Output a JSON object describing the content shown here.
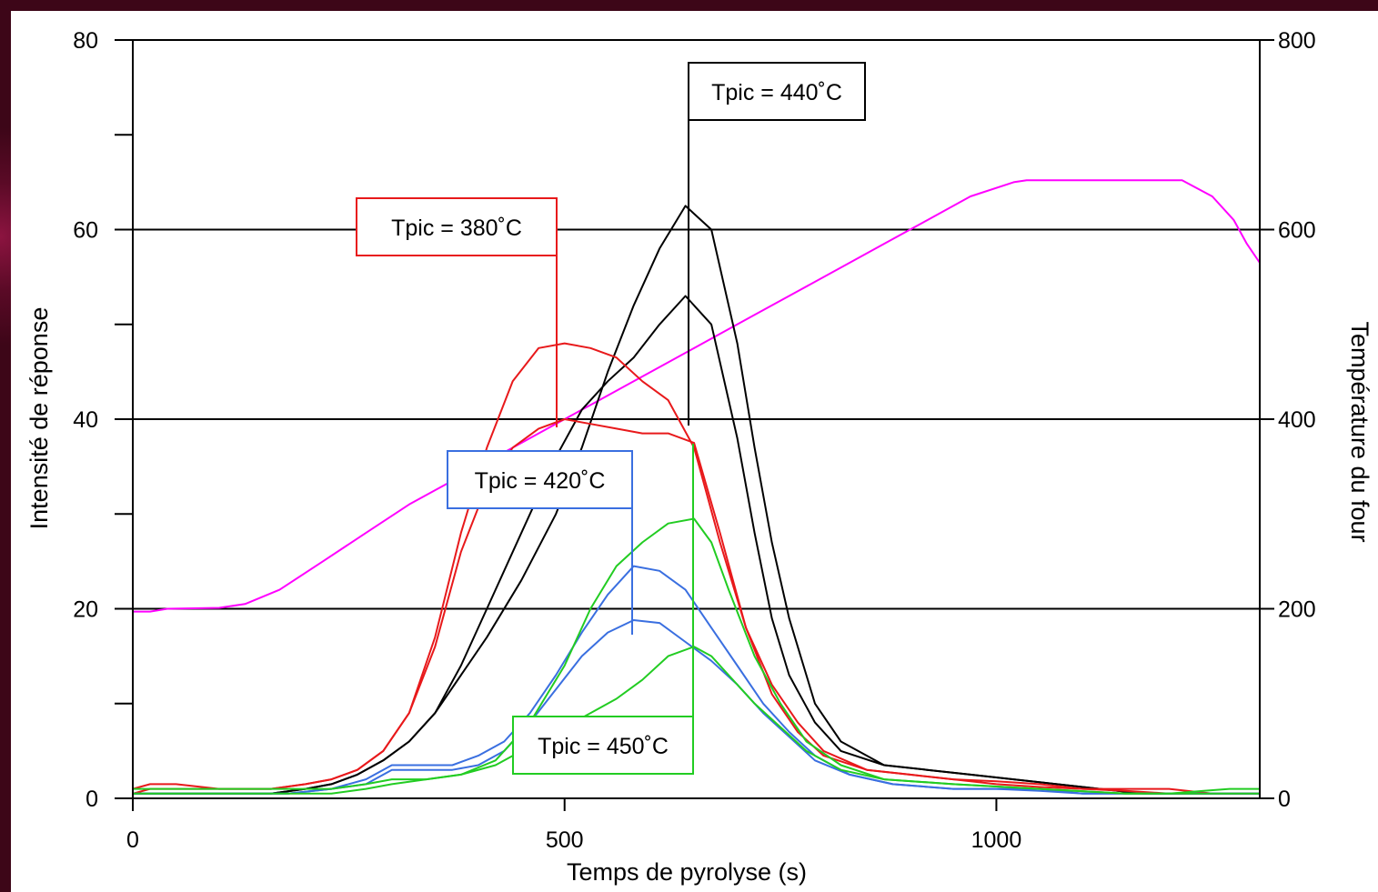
{
  "chart_data": {
    "type": "line",
    "xlabel": "Temps de pyrolyse (s)",
    "ylabel": "Intensité de réponse",
    "y2label": "Température du four",
    "xlim": [
      0,
      1305
    ],
    "ylim": [
      0,
      80
    ],
    "y2lim": [
      0,
      800
    ],
    "x_ticks": [
      "0",
      "500",
      "1000"
    ],
    "y_ticks": [
      "0",
      "20",
      "40",
      "60",
      "80"
    ],
    "y2_ticks": [
      "0",
      "200",
      "400",
      "600",
      "800"
    ],
    "grid": "horizontal at 20, 40, 60",
    "annotations": [
      {
        "text": "Tpic = 440˚C",
        "color": "#000000",
        "x": 643,
        "peak_y": 62.5
      },
      {
        "text": "Tpic = 380˚C",
        "color": "#e8191b",
        "x": 492,
        "peak_y": 48
      },
      {
        "text": "Tpic = 420˚C",
        "color": "#3a6fe0",
        "x": 578,
        "peak_y": 24.5
      },
      {
        "text": "Tpic = 450˚C",
        "color": "#22cc22",
        "x": 647,
        "peak_y": 29.5
      }
    ],
    "series": [
      {
        "color": "#ff00ff",
        "axis": "y2",
        "x": [
          0,
          20,
          40,
          100,
          130,
          170,
          220,
          270,
          320,
          370,
          420,
          470,
          520,
          570,
          620,
          670,
          720,
          770,
          820,
          870,
          920,
          970,
          1020,
          1035,
          1100,
          1150,
          1215,
          1250,
          1275,
          1290,
          1305
        ],
        "y": [
          197,
          197,
          200,
          201,
          205,
          220,
          250,
          280,
          310,
          335,
          360,
          385,
          410,
          435,
          460,
          485,
          510,
          535,
          560,
          585,
          610,
          635,
          650,
          652,
          652,
          652,
          652,
          635,
          610,
          585,
          565
        ]
      },
      {
        "color": "#000000",
        "axis": "y1",
        "x": [
          0,
          100,
          160,
          200,
          230,
          260,
          290,
          320,
          350,
          380,
          410,
          450,
          490,
          520,
          550,
          580,
          610,
          640,
          670,
          700,
          720,
          740,
          760,
          790,
          820,
          870,
          920,
          970,
          1020,
          1070,
          1120,
          1170,
          1220,
          1270,
          1305
        ],
        "y": [
          0.5,
          0.5,
          0.5,
          1,
          1.5,
          2.5,
          4,
          6,
          9,
          13,
          17,
          23,
          30,
          37,
          45,
          52,
          58,
          62.5,
          60,
          48,
          37,
          27,
          19,
          10,
          6,
          3.5,
          3,
          2.5,
          2,
          1.5,
          1,
          0.5,
          0.5,
          0.5,
          0.5
        ]
      },
      {
        "color": "#000000",
        "axis": "y1",
        "x": [
          0,
          100,
          160,
          200,
          230,
          260,
          290,
          320,
          350,
          380,
          410,
          450,
          490,
          520,
          550,
          580,
          610,
          640,
          670,
          700,
          720,
          740,
          760,
          790,
          820,
          870,
          920,
          970,
          1020,
          1070,
          1120,
          1170,
          1220,
          1270,
          1305
        ],
        "y": [
          0.5,
          0.5,
          0.5,
          1,
          1.5,
          2.5,
          4,
          6,
          9,
          14,
          20,
          28,
          36,
          41,
          44,
          46.5,
          50,
          53,
          50,
          38,
          28,
          19,
          13,
          8,
          5,
          3.5,
          3,
          2.5,
          2,
          1.5,
          1,
          0.5,
          0.5,
          0.5,
          0.5
        ]
      },
      {
        "color": "#e8191b",
        "axis": "y1",
        "x": [
          0,
          20,
          50,
          100,
          160,
          200,
          230,
          260,
          290,
          320,
          350,
          380,
          410,
          440,
          470,
          500,
          530,
          560,
          590,
          620,
          650,
          680,
          710,
          740,
          770,
          800,
          850,
          900,
          950,
          1000,
          1050,
          1100,
          1150,
          1200,
          1250,
          1305
        ],
        "y": [
          1,
          1.5,
          1.5,
          1,
          1,
          1.5,
          2,
          3,
          5,
          9,
          17,
          28,
          37,
          44,
          47.5,
          48,
          47.5,
          46.5,
          44,
          42,
          37,
          27,
          18,
          12,
          8,
          5,
          3,
          2.5,
          2,
          1.8,
          1.5,
          1,
          1,
          1,
          0.5,
          0.5
        ]
      },
      {
        "color": "#e8191b",
        "axis": "y1",
        "x": [
          0,
          20,
          50,
          100,
          160,
          200,
          230,
          260,
          290,
          320,
          350,
          380,
          410,
          440,
          470,
          500,
          530,
          560,
          590,
          620,
          650,
          680,
          710,
          740,
          770,
          800,
          850,
          900,
          950,
          1000,
          1050,
          1100,
          1150,
          1200,
          1250,
          1305
        ],
        "y": [
          0.5,
          1,
          1,
          1,
          1,
          1.5,
          2,
          3,
          5,
          9,
          16,
          26,
          33,
          37,
          39,
          40,
          39.5,
          39,
          38.5,
          38.5,
          37.5,
          28,
          18,
          11,
          7,
          4.5,
          3,
          2.5,
          2,
          1.5,
          1.2,
          1,
          0.8,
          0.5,
          0.5,
          0.5
        ]
      },
      {
        "color": "#3a6fe0",
        "axis": "y1",
        "x": [
          0,
          100,
          180,
          230,
          270,
          300,
          340,
          370,
          400,
          430,
          460,
          490,
          520,
          550,
          580,
          610,
          640,
          670,
          700,
          730,
          760,
          790,
          830,
          880,
          950,
          1000,
          1050,
          1100,
          1150,
          1200,
          1250,
          1305
        ],
        "y": [
          0.5,
          0.5,
          0.5,
          1,
          2,
          3.5,
          3.5,
          3.5,
          4.5,
          6,
          9,
          13,
          17.5,
          21.5,
          24.5,
          24,
          22,
          18,
          14,
          10,
          7,
          4.5,
          2.5,
          1.5,
          1,
          1,
          1,
          0.5,
          0.5,
          0.5,
          0.5,
          0.5
        ]
      },
      {
        "color": "#3a6fe0",
        "axis": "y1",
        "x": [
          0,
          100,
          180,
          230,
          270,
          300,
          340,
          370,
          400,
          430,
          460,
          490,
          520,
          550,
          580,
          610,
          640,
          670,
          700,
          730,
          760,
          790,
          830,
          880,
          950,
          1000,
          1050,
          1100,
          1150,
          1200,
          1250,
          1305
        ],
        "y": [
          0.5,
          0.5,
          0.5,
          1,
          1.5,
          3,
          3,
          3,
          3.5,
          5,
          8,
          11.5,
          15,
          17.5,
          18.8,
          18.5,
          16.5,
          14.5,
          12,
          9,
          6.5,
          4,
          2.5,
          1.5,
          1,
          1,
          0.8,
          0.5,
          0.5,
          0.5,
          0.5,
          0.5
        ]
      },
      {
        "color": "#22cc22",
        "axis": "y1",
        "x": [
          0,
          50,
          100,
          180,
          230,
          270,
          300,
          340,
          380,
          420,
          460,
          500,
          530,
          560,
          590,
          620,
          650,
          670,
          690,
          720,
          750,
          780,
          820,
          870,
          950,
          1050,
          1150,
          1200,
          1240,
          1270,
          1305
        ],
        "y": [
          1,
          1,
          1,
          1,
          1,
          1.5,
          2,
          2,
          2.5,
          4,
          8,
          14,
          20,
          24.5,
          27,
          29,
          29.5,
          27,
          22,
          15,
          10,
          6,
          3.5,
          2,
          1.5,
          1,
          0.5,
          0.5,
          0.8,
          1,
          1
        ]
      },
      {
        "color": "#22cc22",
        "axis": "y1",
        "x": [
          0,
          50,
          100,
          180,
          230,
          270,
          300,
          340,
          380,
          420,
          460,
          500,
          530,
          560,
          590,
          620,
          650,
          670,
          690,
          720,
          750,
          780,
          820,
          870,
          950,
          1050,
          1150,
          1200,
          1240,
          1270,
          1305
        ],
        "y": [
          0.5,
          0.5,
          0.5,
          0.5,
          0.5,
          1,
          1.5,
          2,
          2.5,
          3.5,
          5.5,
          7.5,
          9,
          10.5,
          12.5,
          15,
          16,
          15,
          13,
          10,
          7.5,
          5,
          3,
          2,
          1.5,
          1,
          0.5,
          0.5,
          0.5,
          0.5,
          0.5
        ]
      }
    ]
  }
}
